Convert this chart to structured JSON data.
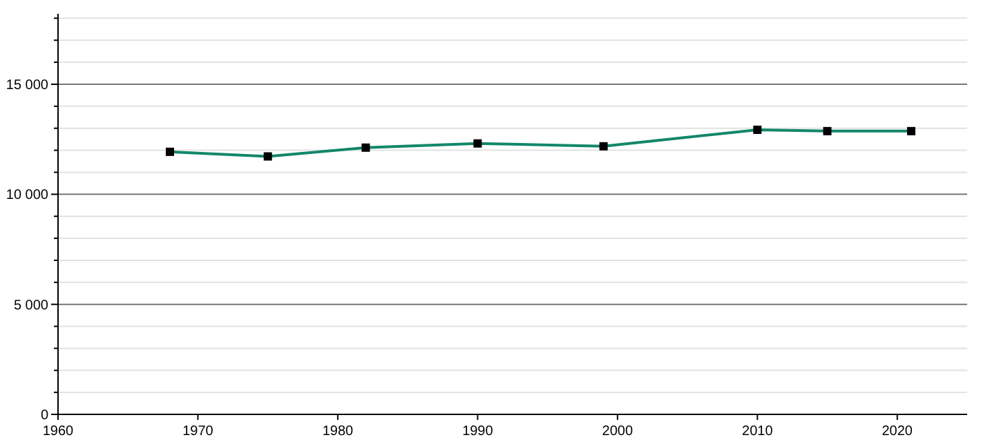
{
  "chart_data": {
    "type": "line",
    "x": [
      1968,
      1975,
      1982,
      1990,
      1999,
      2010,
      2015,
      2021
    ],
    "series": [
      {
        "color": "#12876a",
        "values": [
          11930,
          11720,
          12120,
          12310,
          12180,
          12930,
          12870,
          12870
        ]
      }
    ],
    "xlim": [
      1960,
      2025
    ],
    "xticks": [
      1960,
      1970,
      1980,
      1990,
      2000,
      2010,
      2020
    ],
    "ylim": [
      0,
      18200
    ],
    "yticks": [
      {
        "value": 0,
        "label": "0"
      },
      {
        "value": 1000,
        "label": null
      },
      {
        "value": 2000,
        "label": null
      },
      {
        "value": 3000,
        "label": null
      },
      {
        "value": 4000,
        "label": null
      },
      {
        "value": 5000,
        "label": "5 000"
      },
      {
        "value": 6000,
        "label": null
      },
      {
        "value": 7000,
        "label": null
      },
      {
        "value": 8000,
        "label": null
      },
      {
        "value": 9000,
        "label": null
      },
      {
        "value": 10000,
        "label": "10 000"
      },
      {
        "value": 11000,
        "label": null
      },
      {
        "value": 12000,
        "label": null
      },
      {
        "value": 13000,
        "label": null
      },
      {
        "value": 14000,
        "label": null
      },
      {
        "value": 15000,
        "label": "15 000"
      },
      {
        "value": 16000,
        "label": null
      },
      {
        "value": 17000,
        "label": null
      },
      {
        "value": 18000,
        "label": null
      }
    ],
    "grid": "y",
    "marker": "square",
    "line_style": "solid"
  }
}
